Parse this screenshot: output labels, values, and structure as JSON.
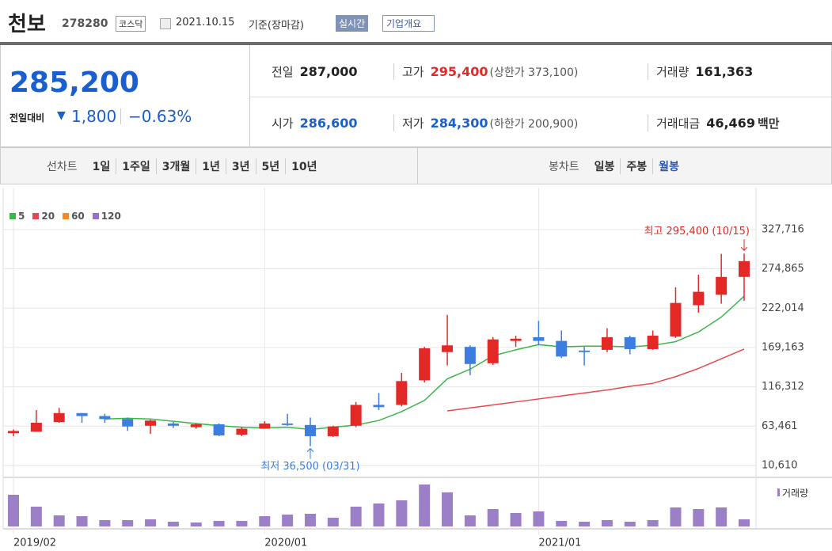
{
  "header": {
    "title": "천보",
    "code": "278280",
    "market": "코스닥",
    "date": "2021.10.15",
    "basis": "기준(장마감)",
    "realtime": "실시간",
    "company": "기업개요"
  },
  "summary": {
    "price": "285,200",
    "change_label": "전일대비",
    "change": "1,800",
    "change_pct": "−0.63%",
    "cells": [
      {
        "label": "전일",
        "value": "287,000"
      },
      {
        "label": "고가",
        "value": "295,400",
        "note": "(상한가 373,100)"
      },
      {
        "label": "거래량",
        "value": "161,363"
      },
      {
        "label": "시가",
        "value": "286,600"
      },
      {
        "label": "저가",
        "value": "284,300",
        "note": "(하한가 200,900)"
      },
      {
        "label": "거래대금",
        "value": "46,469",
        "unit": "백만"
      }
    ]
  },
  "tabs": {
    "line_chart": "선차트",
    "periods": [
      "1일",
      "1주일",
      "3개월",
      "1년",
      "3년",
      "5년",
      "10년"
    ],
    "candle_chart": "봉차트",
    "candles": [
      "일봉",
      "주봉",
      "월봉"
    ],
    "selected_candle": 2
  },
  "chart_data": {
    "type": "candlestick",
    "categories": [
      "2019/02",
      null,
      null,
      null,
      null,
      null,
      null,
      null,
      null,
      null,
      null,
      "2020/01",
      null,
      null,
      null,
      null,
      null,
      null,
      null,
      null,
      null,
      null,
      null,
      "2021/01",
      null,
      null,
      null,
      null,
      null,
      null,
      null,
      null,
      null
    ],
    "open": [
      54000,
      56000,
      69000,
      81000,
      77000,
      73000,
      64000,
      67000,
      62000,
      66000,
      52000,
      60000,
      67000,
      65000,
      50000,
      64000,
      92000,
      92000,
      125000,
      163000,
      170000,
      148000,
      178000,
      183000,
      178000,
      165000,
      166000,
      183000,
      167000,
      184000,
      226000,
      240000,
      264000
    ],
    "high": [
      59000,
      85000,
      88000,
      81000,
      80000,
      75000,
      72000,
      69000,
      67000,
      67000,
      62000,
      70000,
      80000,
      75000,
      64000,
      96000,
      108000,
      135000,
      170000,
      213000,
      172000,
      183000,
      185000,
      205000,
      192000,
      170000,
      195000,
      185000,
      192000,
      250000,
      267000,
      295000,
      295400
    ],
    "low": [
      50000,
      56000,
      68000,
      68000,
      68000,
      57000,
      53000,
      61000,
      60000,
      50000,
      50000,
      60000,
      64000,
      36500,
      49000,
      62000,
      85000,
      90000,
      122000,
      145000,
      132000,
      146000,
      170000,
      172000,
      155000,
      145000,
      163000,
      160000,
      166000,
      182000,
      216000,
      228000,
      232000
    ],
    "close": [
      57000,
      68000,
      81000,
      77000,
      73000,
      63000,
      71000,
      64000,
      66000,
      51000,
      60000,
      67000,
      65000,
      50000,
      63000,
      92000,
      89000,
      124000,
      168000,
      172000,
      147000,
      180000,
      181000,
      178000,
      157000,
      163000,
      183000,
      167000,
      185000,
      229000,
      244000,
      264000,
      285200
    ],
    "up_color": "#e22926",
    "down_color": "#3b7de0",
    "ylim": [
      -5400,
      384000
    ],
    "yticks": [
      {
        "value": 10610,
        "label": "10,610"
      },
      {
        "value": 63461,
        "label": "63,461"
      },
      {
        "value": 116312,
        "label": "116,312"
      },
      {
        "value": 169163,
        "label": "169,163"
      },
      {
        "value": 222014,
        "label": "222,014"
      },
      {
        "value": 274865,
        "label": "274,865"
      },
      {
        "value": 327716,
        "label": "327,716"
      }
    ],
    "grid": true,
    "moving_averages": [
      {
        "name": "5",
        "color": "#3cb64a",
        "values": [
          null,
          null,
          null,
          null,
          73000,
          74000,
          73000,
          70000,
          67000,
          64000,
          62000,
          61000,
          62000,
          59000,
          62000,
          65000,
          71000,
          83000,
          98000,
          127000,
          140000,
          158000,
          166000,
          173000,
          170000,
          171000,
          171000,
          170000,
          172000,
          177000,
          190000,
          210000,
          238000
        ]
      },
      {
        "name": "20",
        "color": "#e9484a",
        "values": [
          null,
          null,
          null,
          null,
          null,
          null,
          null,
          null,
          null,
          null,
          null,
          null,
          null,
          null,
          null,
          null,
          null,
          null,
          null,
          84000,
          88000,
          92000,
          96000,
          100000,
          104000,
          108000,
          112000,
          117000,
          121000,
          130000,
          141000,
          154000,
          167000
        ]
      },
      {
        "name": "60",
        "color": "#f5892a",
        "values": [
          null,
          null,
          null,
          null,
          null,
          null,
          null,
          null,
          null,
          null,
          null,
          null,
          null,
          null,
          null,
          null,
          null,
          null,
          null,
          null,
          null,
          null,
          null,
          null,
          null,
          null,
          null,
          null,
          null,
          null,
          null,
          null,
          null
        ]
      },
      {
        "name": "120",
        "color": "#9a6fc7",
        "values": [
          null,
          null,
          null,
          null,
          null,
          null,
          null,
          null,
          null,
          null,
          null,
          null,
          null,
          null,
          null,
          null,
          null,
          null,
          null,
          null,
          null,
          null,
          null,
          null,
          null,
          null,
          null,
          null,
          null,
          null,
          null,
          null,
          null
        ]
      }
    ],
    "volume": {
      "label": "거래량",
      "color": "#9b80c8",
      "values": [
        40,
        25,
        14,
        13,
        8,
        8,
        9,
        6,
        5,
        7,
        7,
        13,
        15,
        16,
        11,
        25,
        29,
        33,
        53,
        43,
        14,
        22,
        17,
        19,
        7,
        6,
        8,
        6,
        8,
        24,
        22,
        24,
        9
      ]
    },
    "annotations": [
      {
        "text": "최고 295,400 (10/15)",
        "color": "#e22926"
      },
      {
        "text": "최저 36,500 (03/31)",
        "color": "#3b7de0"
      }
    ]
  }
}
